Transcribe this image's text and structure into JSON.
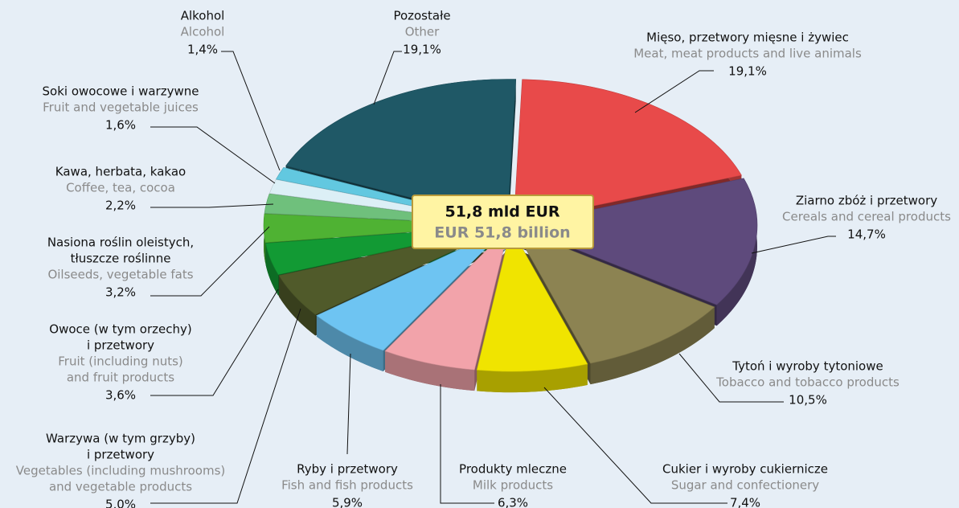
{
  "chart_data": {
    "type": "pie3d",
    "center_label": [
      "51,8 mld EUR",
      "EUR 51,8 billion"
    ],
    "categories": [
      [
        "Mięso, przetwory mięsne i żywiec"
      ],
      [
        "Ziarno zbóż i przetwory"
      ],
      [
        "Tytoń i wyroby tytoniowe"
      ],
      [
        "Cukier i wyroby cukiernicze"
      ],
      [
        "Produkty mleczne"
      ],
      [
        "Ryby i przetwory"
      ],
      [
        "Warzywa (w tym grzyby)",
        "i przetwory"
      ],
      [
        "Owoce (w tym orzechy)",
        "i przetwory"
      ],
      [
        "Nasiona roślin oleistych,",
        "tłuszcze roślinne"
      ],
      [
        "Kawa, herbata, kakao"
      ],
      [
        "Soki owocowe i warzywne"
      ],
      [
        "Alkohol"
      ],
      [
        "Pozostałe"
      ]
    ],
    "categories_en": [
      [
        "Meat, meat products and live animals"
      ],
      [
        "Cereals and cereal products"
      ],
      [
        "Tobacco and tobacco products"
      ],
      [
        "Sugar and confectionery"
      ],
      [
        "Milk products"
      ],
      [
        "Fish and fish products"
      ],
      [
        "Vegetables (including mushrooms)",
        "and vegetable products"
      ],
      [
        "Fruit (including nuts)",
        "and fruit products"
      ],
      [
        "Oilseeds, vegetable fats"
      ],
      [
        "Coffee, tea, cocoa"
      ],
      [
        "Fruit and vegetable juices"
      ],
      [
        "Alcohol"
      ],
      [
        "Other"
      ]
    ],
    "values": [
      19.1,
      14.7,
      10.5,
      7.4,
      6.3,
      5.9,
      5.0,
      3.6,
      3.2,
      2.2,
      1.6,
      1.4,
      19.1
    ],
    "value_labels": [
      "19,1%",
      "14,7%",
      "10,5%",
      "7,4%",
      "6,3%",
      "5,9%",
      "5,0%",
      "3,6%",
      "3,2%",
      "2,2%",
      "1,6%",
      "1,4%",
      "19,1%"
    ],
    "colors": [
      "#e84a4a",
      "#5e4a7c",
      "#8c8352",
      "#f0e400",
      "#f2a3aa",
      "#6ec4f2",
      "#505a2a",
      "#129a34",
      "#4fb233",
      "#6fc07c",
      "#dceff6",
      "#62c8e0",
      "#1f5866"
    ]
  }
}
